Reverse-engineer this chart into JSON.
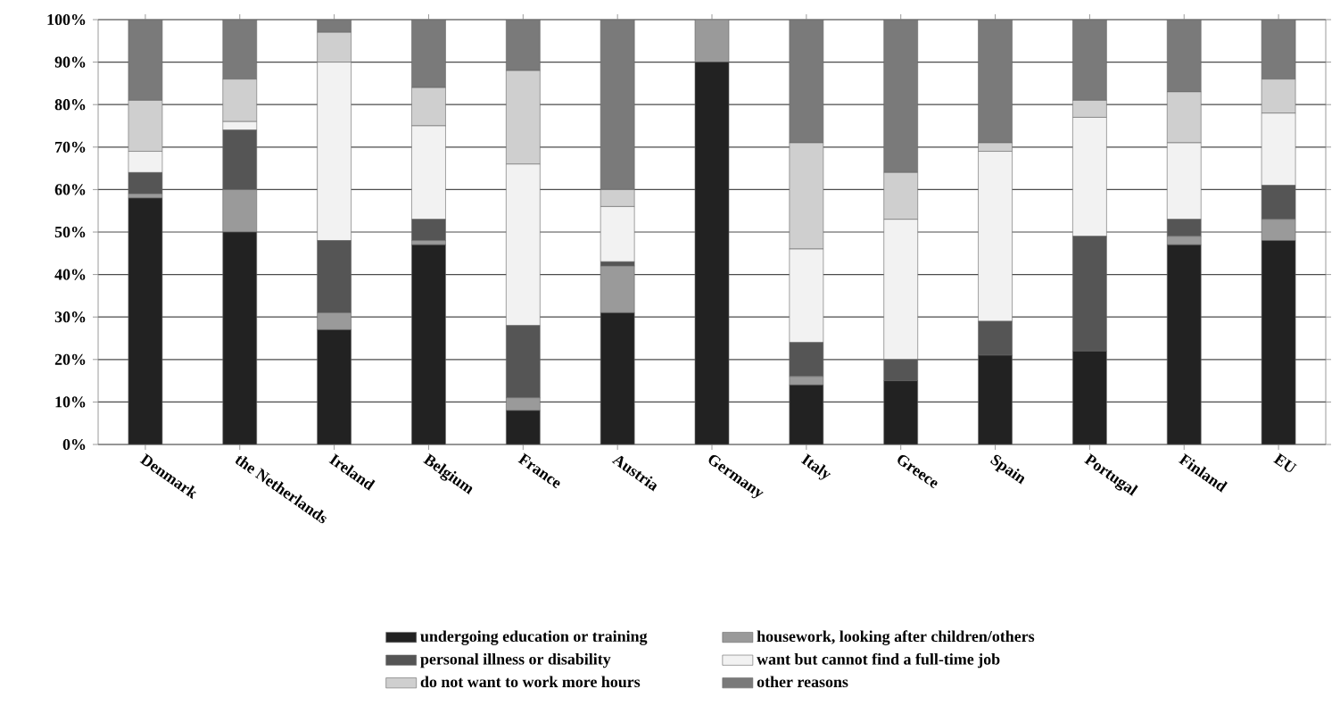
{
  "chart_data": {
    "type": "bar",
    "stacked": true,
    "categories": [
      "Denmark",
      "the Netherlands",
      "Ireland",
      "Belgium",
      "France",
      "Austria",
      "Germany",
      "Italy",
      "Greece",
      "Spain",
      "Portugal",
      "Finland",
      "EU"
    ],
    "series": [
      {
        "name": "undergoing education or training",
        "color": "#222222",
        "values": [
          58,
          50,
          27,
          47,
          8,
          31,
          90,
          14,
          15,
          21,
          22,
          47,
          48
        ]
      },
      {
        "name": "housework, looking after children/others",
        "color": "#9a9a9a",
        "values": [
          1,
          10,
          4,
          1,
          3,
          11,
          10,
          2,
          0,
          0,
          0,
          2,
          5
        ]
      },
      {
        "name": "personal illness or disability",
        "color": "#555555",
        "values": [
          5,
          14,
          17,
          5,
          17,
          1,
          0,
          8,
          5,
          8,
          27,
          4,
          8
        ]
      },
      {
        "name": "want but cannot find a full-time job",
        "color": "#f2f2f2",
        "values": [
          5,
          2,
          42,
          22,
          38,
          13,
          0,
          22,
          33,
          40,
          28,
          18,
          17
        ]
      },
      {
        "name": "do not want to work more hours",
        "color": "#cfcfcf",
        "values": [
          12,
          10,
          7,
          9,
          22,
          4,
          0,
          25,
          11,
          2,
          4,
          12,
          8
        ]
      },
      {
        "name": "other reasons",
        "color": "#7a7a7a",
        "values": [
          19,
          14,
          3,
          16,
          12,
          40,
          0,
          29,
          36,
          29,
          19,
          17,
          14
        ]
      }
    ],
    "ylim": [
      0,
      100
    ],
    "yticks": [
      {
        "value": 0,
        "label": "0%"
      },
      {
        "value": 10,
        "label": "10%"
      },
      {
        "value": 20,
        "label": "20%"
      },
      {
        "value": 30,
        "label": "30%"
      },
      {
        "value": 40,
        "label": "40%"
      },
      {
        "value": 50,
        "label": "50%"
      },
      {
        "value": 60,
        "label": "60%"
      },
      {
        "value": 70,
        "label": "70%"
      },
      {
        "value": 80,
        "label": "80%"
      },
      {
        "value": 90,
        "label": "90%"
      },
      {
        "value": 100,
        "label": "100%"
      }
    ],
    "grid": "y",
    "legend": "bottom"
  }
}
